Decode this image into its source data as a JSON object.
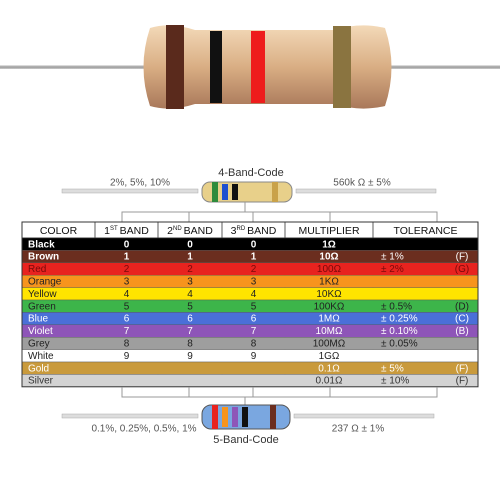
{
  "four_band": {
    "title": "4-Band-Code",
    "tolerances": "2%, 5%, 10%",
    "example": "560k Ω  ± 5%"
  },
  "five_band": {
    "title": "5-Band-Code",
    "tolerances": "0.1%, 0.25%, 0.5%, 1%",
    "example": "237 Ω  ± 1%"
  },
  "table": {
    "headers": [
      {
        "label": "COLOR"
      },
      {
        "number": "1",
        "suffix": "ST",
        "label": "BAND"
      },
      {
        "number": "2",
        "suffix": "ND",
        "label": "BAND"
      },
      {
        "number": "3",
        "suffix": "RD",
        "label": "BAND"
      },
      {
        "label": "MULTIPLIER"
      },
      {
        "label": "TOLERANCE"
      }
    ],
    "rows": [
      {
        "color": "Black",
        "band1": "0",
        "band2": "0",
        "band3": "0",
        "multiplier": "1Ω"
      },
      {
        "color": "Brown",
        "band1": "1",
        "band2": "1",
        "band3": "1",
        "multiplier": "10Ω",
        "tolerance": "± 1%",
        "code": "(F)"
      },
      {
        "color": "Red",
        "band1": "2",
        "band2": "2",
        "band3": "2",
        "multiplier": "100Ω",
        "tolerance": "± 2%",
        "code": "(G)"
      },
      {
        "color": "Orange",
        "band1": "3",
        "band2": "3",
        "band3": "3",
        "multiplier": "1KΩ"
      },
      {
        "color": "Yellow",
        "band1": "4",
        "band2": "4",
        "band3": "4",
        "multiplier": "10KΩ"
      },
      {
        "color": "Green",
        "band1": "5",
        "band2": "5",
        "band3": "5",
        "multiplier": "100KΩ",
        "tolerance": "± 0.5%",
        "code": "(D)"
      },
      {
        "color": "Blue",
        "band1": "6",
        "band2": "6",
        "band3": "6",
        "multiplier": "1MΩ",
        "tolerance": "± 0.25%",
        "code": "(C)"
      },
      {
        "color": "Violet",
        "band1": "7",
        "band2": "7",
        "band3": "7",
        "multiplier": "10MΩ",
        "tolerance": "± 0.10%",
        "code": "(B)"
      },
      {
        "color": "Grey",
        "band1": "8",
        "band2": "8",
        "band3": "8",
        "multiplier": "100MΩ",
        "tolerance": "± 0.05%"
      },
      {
        "color": "White",
        "band1": "9",
        "band2": "9",
        "band3": "9",
        "multiplier": "1GΩ"
      },
      {
        "color": "Gold",
        "multiplier": "0.1Ω",
        "tolerance": "± 5%",
        "code": "(F)"
      },
      {
        "color": "Silver",
        "multiplier": "0.01Ω",
        "tolerance": "± 10%",
        "code": "(F)"
      }
    ]
  }
}
